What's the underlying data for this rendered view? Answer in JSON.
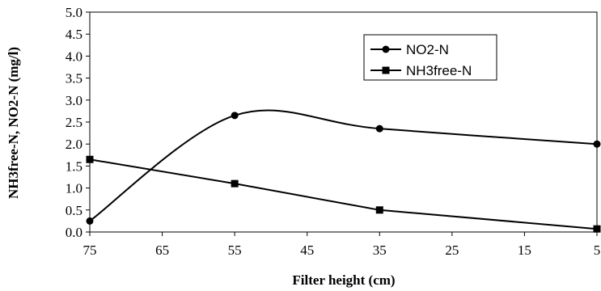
{
  "chart_data": {
    "type": "line",
    "xlabel": "Filter height (cm)",
    "ylabel": "NH3free-N, NO2-N (mg/l)",
    "x_ticks": [
      "75",
      "65",
      "55",
      "45",
      "35",
      "25",
      "15",
      "5"
    ],
    "y_ticks": [
      "0.0",
      "0.5",
      "1.0",
      "1.5",
      "2.0",
      "2.5",
      "3.0",
      "3.5",
      "4.0",
      "4.5",
      "5.0"
    ],
    "xlim": [
      75,
      5
    ],
    "ylim": [
      0,
      5
    ],
    "grid": false,
    "legend_position": "top-right",
    "series": [
      {
        "name": "NO2-N",
        "marker": "circle",
        "smooth": true,
        "x": [
          75,
          55,
          35,
          5
        ],
        "y": [
          0.25,
          2.65,
          2.35,
          2.0
        ]
      },
      {
        "name": "NH3free-N",
        "marker": "square",
        "smooth": false,
        "x": [
          75,
          55,
          35,
          5
        ],
        "y": [
          1.65,
          1.1,
          0.5,
          0.07
        ]
      }
    ]
  },
  "colors": {
    "line": "#000000",
    "background": "#ffffff"
  }
}
